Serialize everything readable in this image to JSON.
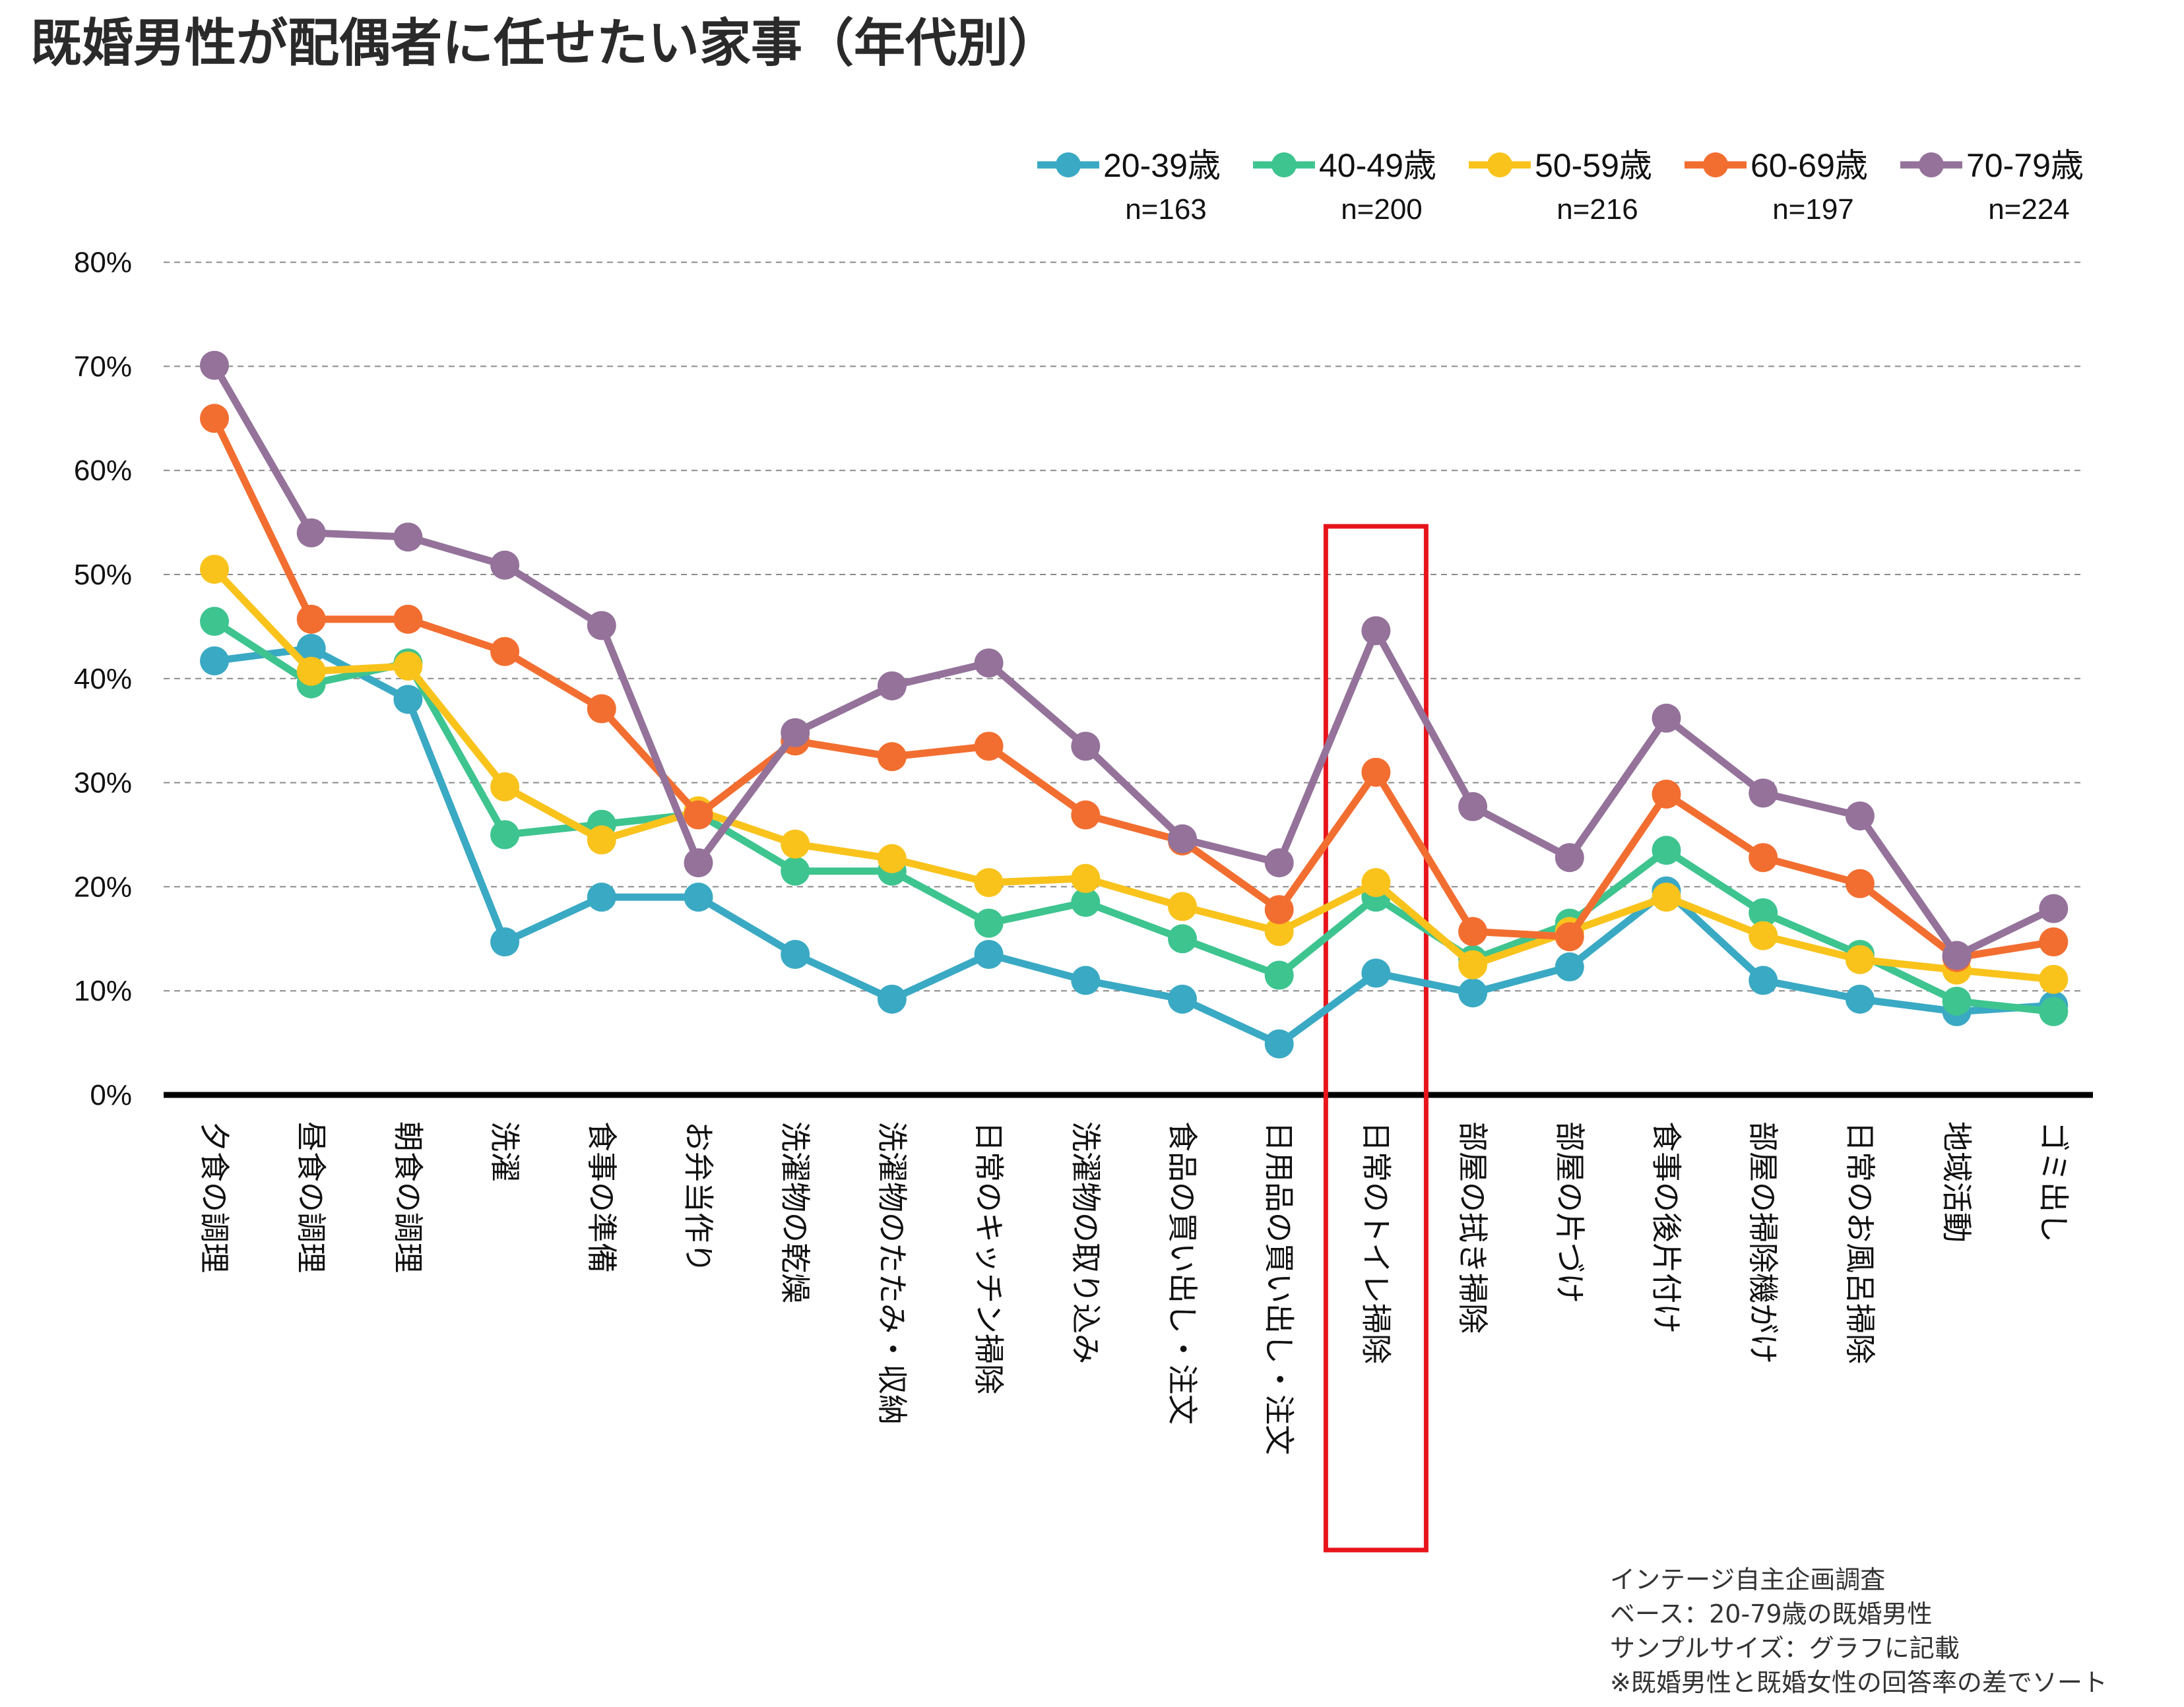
{
  "chart_data": {
    "type": "line",
    "title": "既婚男性が配偶者に任せたい家事（年代別）",
    "categories": [
      "夕食の調理",
      "昼食の調理",
      "朝食の調理",
      "洗濯",
      "食事の準備",
      "お弁当作り",
      "洗濯物の乾燥",
      "洗濯物のたたみ・収納",
      "日常のキッチン掃除",
      "洗濯物の取り込み",
      "食品の買い出し・注文",
      "日用品の買い出し・注文",
      "日常のトイレ掃除",
      "部屋の拭き掃除",
      "部屋の片づけ",
      "食事の後片付け",
      "部屋の掃除機がけ",
      "日常のお風呂掃除",
      "地域活動",
      "ゴミ出し"
    ],
    "yticks": [
      "0%",
      "10%",
      "20%",
      "30%",
      "40%",
      "50%",
      "60%",
      "70%",
      "80%"
    ],
    "ylim": [
      0,
      80
    ],
    "grid": true,
    "legend_position": "top-right",
    "highlighted_category": "日常のトイレ掃除",
    "highlight_color": "#e8141b",
    "series": [
      {
        "name": "20-39歳",
        "n_label": "n=163",
        "color": "#3aa9c4",
        "values": [
          41.7,
          42.9,
          38.0,
          14.7,
          19.0,
          19.0,
          13.5,
          9.2,
          13.5,
          11.0,
          9.2,
          4.9,
          11.7,
          9.8,
          12.3,
          19.6,
          11.0,
          9.2,
          8.0,
          8.6
        ]
      },
      {
        "name": "40-49歳",
        "n_label": "n=200",
        "color": "#3ec48f",
        "values": [
          45.5,
          39.5,
          41.5,
          25.0,
          26.0,
          27.0,
          21.5,
          21.5,
          16.5,
          18.5,
          15.0,
          11.5,
          19.0,
          13.0,
          16.5,
          23.5,
          17.5,
          13.5,
          9.0,
          8.0
        ]
      },
      {
        "name": "50-59歳",
        "n_label": "n=216",
        "color": "#f9c31c",
        "values": [
          50.5,
          40.7,
          41.2,
          29.6,
          24.5,
          27.3,
          24.1,
          22.7,
          20.4,
          20.8,
          18.1,
          15.7,
          20.4,
          12.5,
          15.7,
          19.0,
          15.3,
          13.0,
          12.0,
          11.1
        ]
      },
      {
        "name": "60-69歳",
        "n_label": "n=197",
        "color": "#f26e30",
        "values": [
          65.0,
          45.7,
          45.7,
          42.6,
          37.1,
          26.9,
          34.0,
          32.5,
          33.5,
          26.9,
          24.4,
          17.8,
          31.0,
          15.7,
          15.2,
          28.9,
          22.8,
          20.3,
          13.2,
          14.7
        ]
      },
      {
        "name": "70-79歳",
        "n_label": "n=224",
        "color": "#94729a",
        "values": [
          70.1,
          54.0,
          53.6,
          50.9,
          45.1,
          22.3,
          34.8,
          39.3,
          41.5,
          33.5,
          24.6,
          22.3,
          44.6,
          27.7,
          22.8,
          36.2,
          29.0,
          26.8,
          13.4,
          17.9
        ]
      }
    ]
  },
  "notes": [
    "インテージ自主企画調査",
    "ベース：20-79歳の既婚男性",
    "サンプルサイズ：グラフに記載",
    "※既婚男性と既婚女性の回答率の差でソート"
  ]
}
